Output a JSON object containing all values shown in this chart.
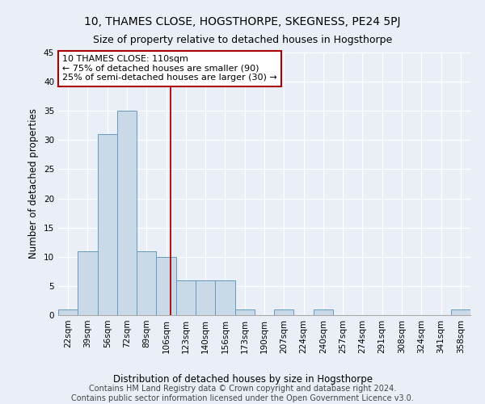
{
  "title": "10, THAMES CLOSE, HOGSTHORPE, SKEGNESS, PE24 5PJ",
  "subtitle": "Size of property relative to detached houses in Hogsthorpe",
  "xlabel": "Distribution of detached houses by size in Hogsthorpe",
  "ylabel": "Number of detached properties",
  "bin_labels": [
    "22sqm",
    "39sqm",
    "56sqm",
    "72sqm",
    "89sqm",
    "106sqm",
    "123sqm",
    "140sqm",
    "156sqm",
    "173sqm",
    "190sqm",
    "207sqm",
    "224sqm",
    "240sqm",
    "257sqm",
    "274sqm",
    "291sqm",
    "308sqm",
    "324sqm",
    "341sqm",
    "358sqm"
  ],
  "values": [
    1,
    11,
    31,
    35,
    11,
    10,
    6,
    6,
    6,
    1,
    0,
    1,
    0,
    1,
    0,
    0,
    0,
    0,
    0,
    0,
    1
  ],
  "bar_color": "#c9d9e8",
  "bar_edge_color": "#6699bb",
  "property_label": "10 THAMES CLOSE: 110sqm",
  "annotation_line1": "← 75% of detached houses are smaller (90)",
  "annotation_line2": "25% of semi-detached houses are larger (30) →",
  "vline_color": "#aa0000",
  "annotation_box_edge_color": "#aa0000",
  "ylim": [
    0,
    45
  ],
  "yticks": [
    0,
    5,
    10,
    15,
    20,
    25,
    30,
    35,
    40,
    45
  ],
  "footer_line1": "Contains HM Land Registry data © Crown copyright and database right 2024.",
  "footer_line2": "Contains public sector information licensed under the Open Government Licence v3.0.",
  "background_color": "#eaeff7",
  "plot_bg_color": "#eaeff7",
  "grid_color": "#ffffff",
  "title_fontsize": 10,
  "subtitle_fontsize": 9,
  "axis_label_fontsize": 8.5,
  "tick_fontsize": 7.5,
  "footer_fontsize": 7,
  "annotation_fontsize": 8
}
